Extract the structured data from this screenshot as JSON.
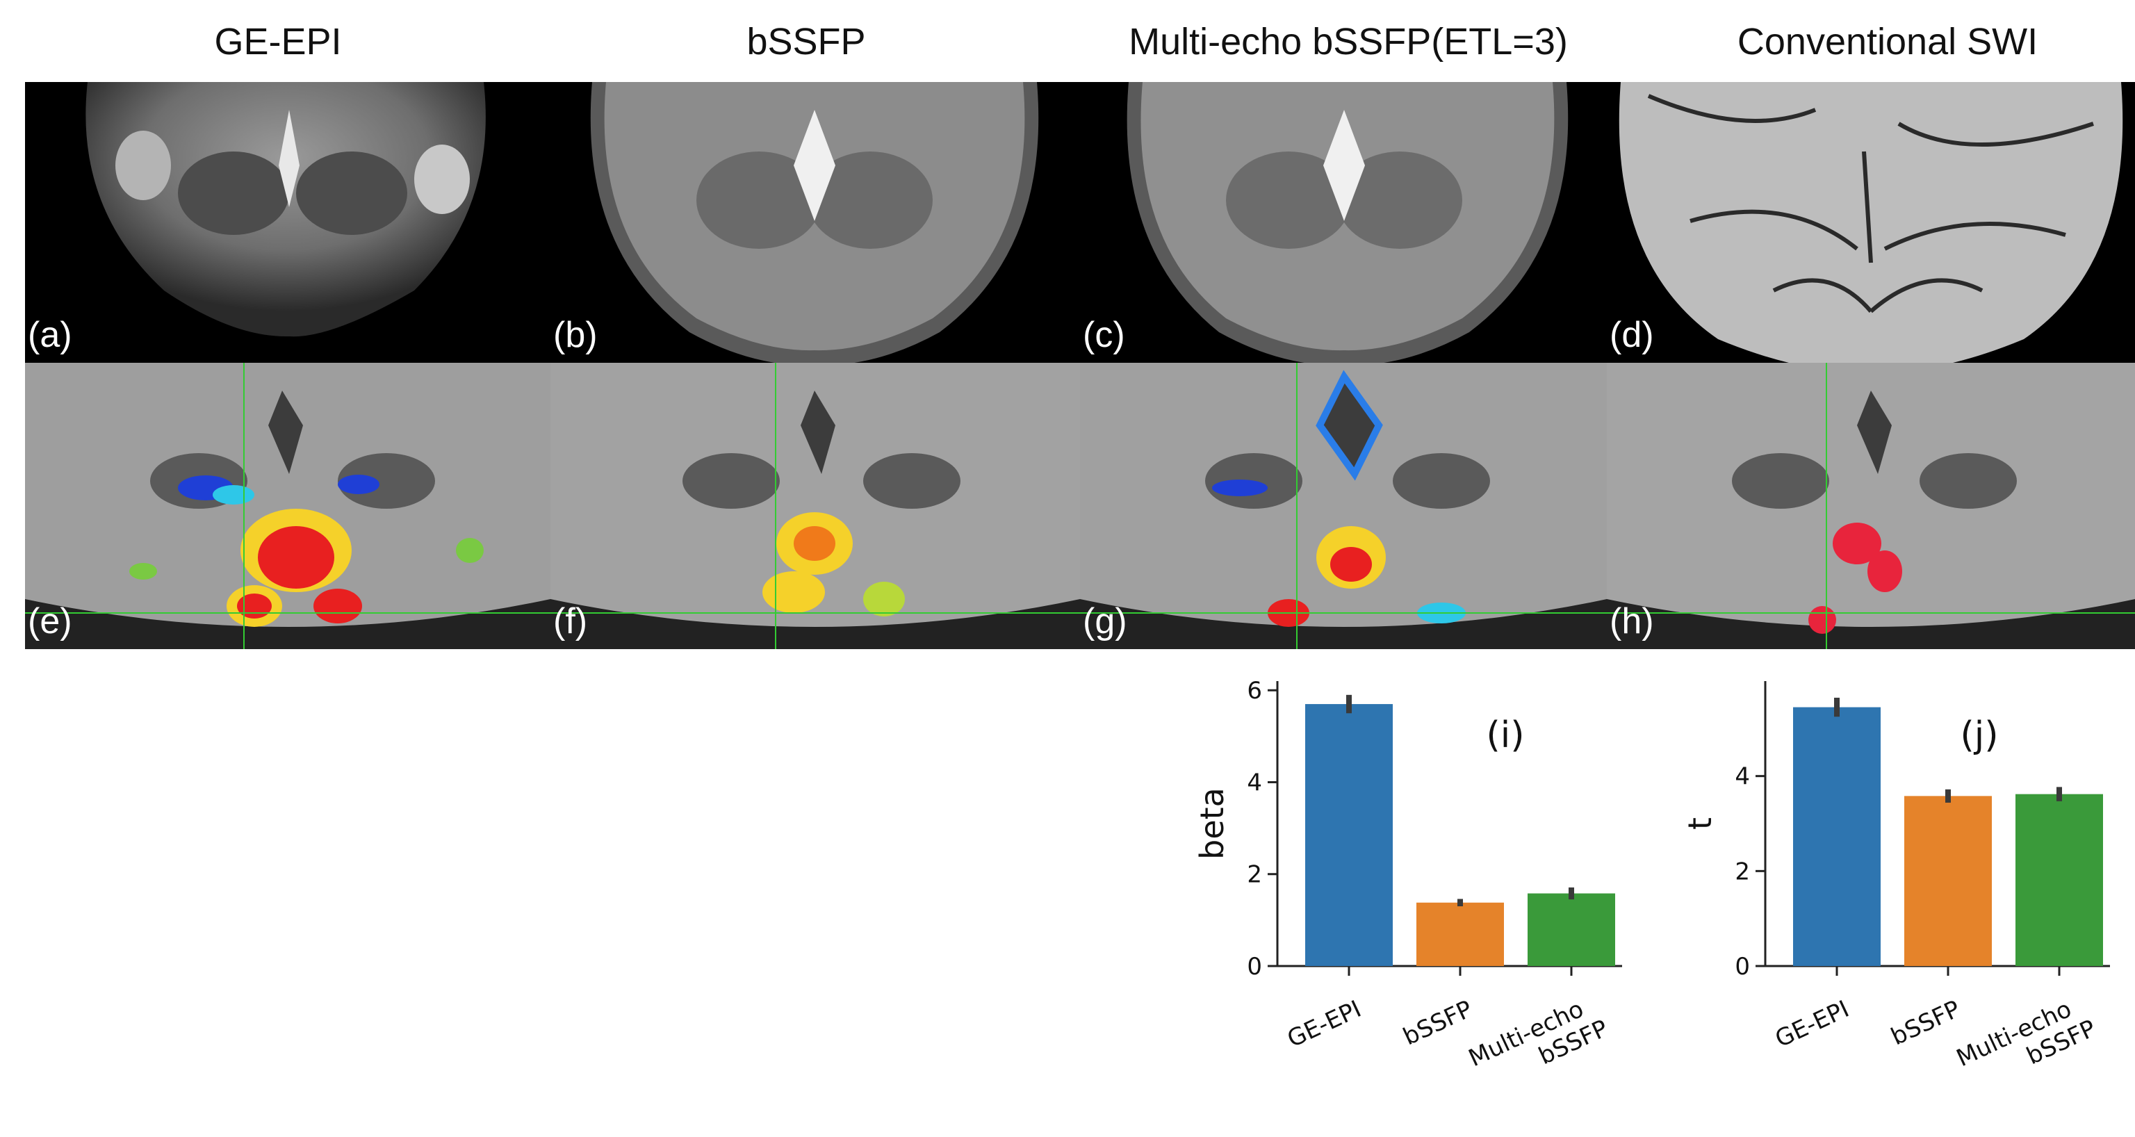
{
  "figure": {
    "column_titles": [
      "GE-EPI",
      "bSSFP",
      "Multi-echo bSSFP(ETL=3)",
      "Conventional SWI"
    ],
    "panel_labels": {
      "a": "(a)",
      "b": "(b)",
      "c": "(c)",
      "d": "(d)",
      "e": "(e)",
      "f": "(f)",
      "g": "(g)",
      "h": "(h)"
    },
    "colors": {
      "blue": "#2e75b0",
      "orange": "#e5832a",
      "green": "#3a9a3a",
      "crosshair": "#33cc33",
      "errorbar": "#3a3a3a"
    }
  },
  "chart_data": [
    {
      "type": "bar",
      "panel_label": "(i)",
      "categories": [
        "GE-EPI",
        "bSSFP",
        "Multi-echo\nbSSFP"
      ],
      "values": [
        5.7,
        1.38,
        1.58
      ],
      "errors": [
        0.2,
        0.08,
        0.13
      ],
      "ylabel": "beta",
      "yticks": [
        0,
        2,
        4,
        6
      ],
      "ylim": [
        0,
        6.2
      ],
      "colors": [
        "#2e75b0",
        "#e5832a",
        "#3a9a3a"
      ]
    },
    {
      "type": "bar",
      "panel_label": "(j)",
      "categories": [
        "GE-EPI",
        "bSSFP",
        "Multi-echo\nbSSFP"
      ],
      "values": [
        5.45,
        3.58,
        3.62
      ],
      "errors": [
        0.2,
        0.14,
        0.15
      ],
      "ylabel": "t",
      "yticks": [
        0,
        2,
        4
      ],
      "ylim": [
        0,
        6.0
      ],
      "colors": [
        "#2e75b0",
        "#e5832a",
        "#3a9a3a"
      ]
    }
  ]
}
